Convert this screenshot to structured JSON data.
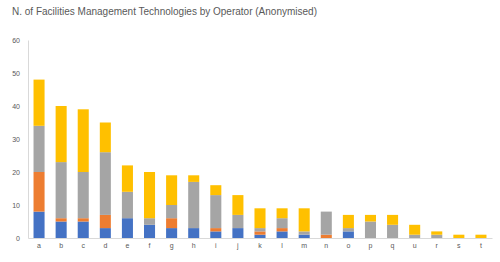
{
  "chart_data": {
    "type": "bar",
    "stacked": true,
    "grid": false,
    "title": "N. of Facilities Management Technologies by Operator (Anonymised)",
    "categories": [
      "a",
      "b",
      "c",
      "d",
      "e",
      "f",
      "g",
      "h",
      "i",
      "j",
      "k",
      "l",
      "m",
      "n",
      "o",
      "p",
      "q",
      "u",
      "r",
      "s",
      "t"
    ],
    "ylim": [
      0,
      60
    ],
    "yticks": [
      0,
      10,
      20,
      30,
      40,
      50,
      60
    ],
    "series": [
      {
        "color": "#4472c4",
        "values": [
          8,
          5,
          5,
          3,
          6,
          4,
          3,
          3,
          2,
          3,
          1,
          2,
          1,
          0,
          2,
          0,
          0,
          0,
          0,
          0,
          0
        ]
      },
      {
        "color": "#ed7d31",
        "values": [
          12,
          1,
          1,
          4,
          0,
          0,
          3,
          0,
          1,
          0,
          1,
          1,
          0,
          1,
          0,
          0,
          0,
          0,
          0,
          0,
          0
        ]
      },
      {
        "color": "#a5a5a5",
        "values": [
          14,
          17,
          14,
          19,
          8,
          2,
          4,
          14,
          10,
          4,
          1,
          3,
          1,
          7,
          1,
          5,
          4,
          1,
          1,
          0,
          0
        ]
      },
      {
        "color": "#ffc000",
        "values": [
          14,
          17,
          19,
          9,
          8,
          14,
          9,
          2,
          3,
          6,
          6,
          3,
          7,
          0,
          4,
          2,
          3,
          3,
          1,
          1,
          1
        ]
      }
    ]
  }
}
